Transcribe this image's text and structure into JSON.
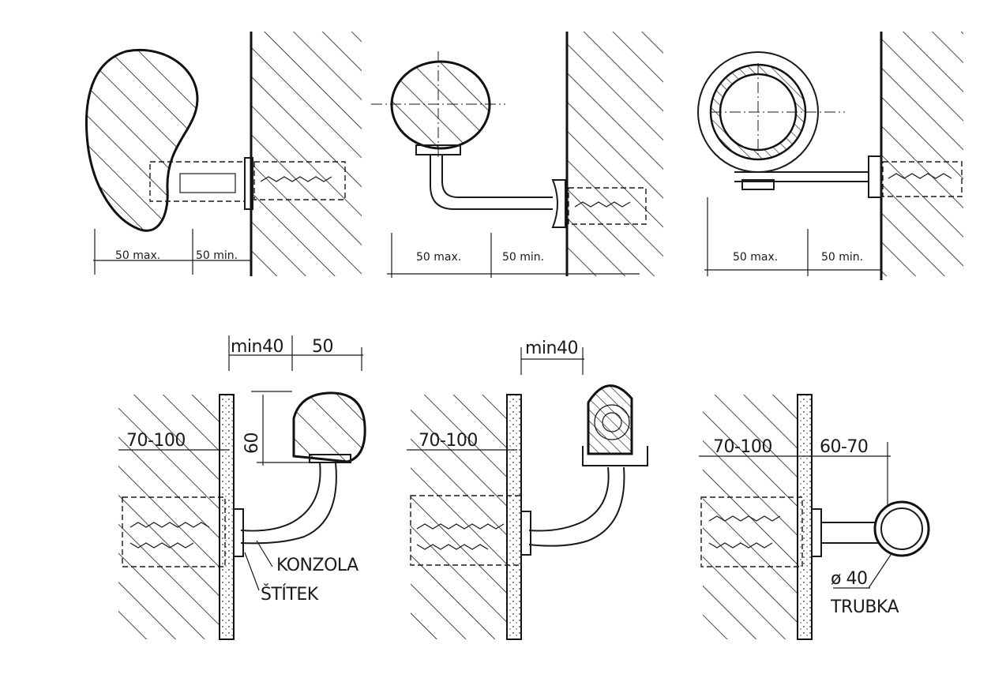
{
  "top_row": {
    "panel1": {
      "dim_left": "50 max.",
      "dim_right": "50 min."
    },
    "panel2": {
      "dim_left": "50 max.",
      "dim_right": "50 min."
    },
    "panel3": {
      "dim_left": "50 max.",
      "dim_right": "50 min."
    }
  },
  "bottom_row": {
    "panel1": {
      "dim_min": "min40",
      "dim_offset": "50",
      "dim_height": "60",
      "dim_depth": "70-100",
      "label_bracket": "KONZOLA",
      "label_plate": "ŠTÍTEK"
    },
    "panel2": {
      "dim_min": "min40",
      "dim_depth": "70-100"
    },
    "panel3": {
      "dim_depth": "70-100",
      "dim_offset": "60-70",
      "dim_diameter": "ø 40",
      "label_tube": "TRUBKA"
    }
  }
}
